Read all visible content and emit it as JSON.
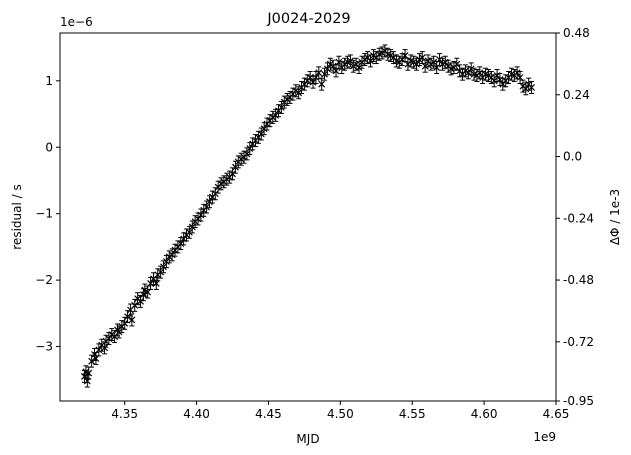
{
  "chart_data": {
    "type": "scatter",
    "title": "J0024-2029",
    "xlabel": "MJD",
    "ylabel": "residual / s",
    "y2label": "ΔΦ / 1e-3",
    "x_offset_label": "1e9",
    "y_offset_label": "1e−6",
    "xlim": [
      4.305,
      4.65
    ],
    "ylim": [
      -3.82,
      1.72
    ],
    "x_ticks": [
      4.35,
      4.4,
      4.45,
      4.5,
      4.55,
      4.6,
      4.65
    ],
    "x_tick_labels": [
      "4.35",
      "4.40",
      "4.45",
      "4.50",
      "4.55",
      "4.60",
      "4.65"
    ],
    "y_ticks": [
      -3,
      -2,
      -1,
      0,
      1
    ],
    "y_tick_labels": [
      "−3",
      "−2",
      "−1",
      "0",
      "1"
    ],
    "y2_ticks": [
      -0.95,
      -0.72,
      -0.48,
      -0.24,
      0.0,
      0.24,
      0.48
    ],
    "y2_tick_labels": [
      "-0.95",
      "-0.72",
      "-0.48",
      "-0.24",
      "0.0",
      "0.24",
      "0.48"
    ],
    "y2lim": [
      -0.95,
      0.48
    ],
    "grid": false,
    "legend": "none",
    "marker": "x",
    "color": "#000000",
    "error_bar": 0.09,
    "series": [
      {
        "x": [
          4.322,
          4.323,
          4.324,
          4.325,
          4.327,
          4.329,
          4.33,
          4.332,
          4.334,
          4.336,
          4.337,
          4.339,
          4.341,
          4.343,
          4.345,
          4.346,
          4.348,
          4.35,
          4.352,
          4.354,
          4.355,
          4.357,
          4.359,
          4.361,
          4.363,
          4.364,
          4.366,
          4.368,
          4.37,
          4.372,
          4.373,
          4.375,
          4.377,
          4.379,
          4.381,
          4.383,
          4.385,
          4.387,
          4.389,
          4.391,
          4.393,
          4.395,
          4.397,
          4.399,
          4.401,
          4.403,
          4.405,
          4.407,
          4.409,
          4.411,
          4.413,
          4.415,
          4.417,
          4.419,
          4.421,
          4.423,
          4.425,
          4.427,
          4.429,
          4.431,
          4.433,
          4.435,
          4.437,
          4.439,
          4.441,
          4.443,
          4.445,
          4.447,
          4.449,
          4.451,
          4.453,
          4.455,
          4.457,
          4.459,
          4.461,
          4.463,
          4.465,
          4.467,
          4.469,
          4.471,
          4.473,
          4.475,
          4.477,
          4.479,
          4.481,
          4.483,
          4.485,
          4.487,
          4.489,
          4.491,
          4.493,
          4.495,
          4.497,
          4.499,
          4.501,
          4.503,
          4.505,
          4.507,
          4.509,
          4.511,
          4.513,
          4.515,
          4.517,
          4.519,
          4.521,
          4.523,
          4.525,
          4.527,
          4.529,
          4.531,
          4.533,
          4.535,
          4.537,
          4.539,
          4.541,
          4.543,
          4.545,
          4.547,
          4.549,
          4.551,
          4.553,
          4.555,
          4.557,
          4.559,
          4.561,
          4.563,
          4.565,
          4.567,
          4.569,
          4.571,
          4.573,
          4.575,
          4.577,
          4.579,
          4.581,
          4.583,
          4.585,
          4.587,
          4.589,
          4.591,
          4.593,
          4.595,
          4.597,
          4.599,
          4.601,
          4.603,
          4.605,
          4.607,
          4.609,
          4.611,
          4.613,
          4.615,
          4.617,
          4.619,
          4.621,
          4.623,
          4.625,
          4.627,
          4.629,
          4.631,
          4.633
        ],
        "y": [
          -3.45,
          -3.38,
          -3.52,
          -3.4,
          -3.22,
          -3.12,
          -3.18,
          -3.05,
          -2.98,
          -3.02,
          -2.92,
          -2.88,
          -2.82,
          -2.85,
          -2.75,
          -2.78,
          -2.7,
          -2.65,
          -2.55,
          -2.45,
          -2.6,
          -2.38,
          -2.28,
          -2.32,
          -2.22,
          -2.15,
          -2.18,
          -2.05,
          -1.98,
          -2.05,
          -1.92,
          -1.88,
          -1.8,
          -1.72,
          -1.65,
          -1.62,
          -1.55,
          -1.5,
          -1.45,
          -1.38,
          -1.32,
          -1.28,
          -1.2,
          -1.12,
          -1.08,
          -1.02,
          -0.95,
          -0.9,
          -0.82,
          -0.75,
          -0.7,
          -0.6,
          -0.55,
          -0.52,
          -0.48,
          -0.45,
          -0.4,
          -0.3,
          -0.22,
          -0.18,
          -0.15,
          -0.1,
          -0.02,
          0.05,
          0.1,
          0.15,
          0.2,
          0.28,
          0.35,
          0.4,
          0.45,
          0.48,
          0.55,
          0.6,
          0.68,
          0.72,
          0.75,
          0.8,
          0.85,
          0.82,
          0.9,
          0.95,
          1.0,
          1.05,
          0.98,
          1.05,
          1.12,
          0.95,
          1.1,
          1.18,
          1.25,
          1.22,
          1.15,
          1.28,
          1.2,
          1.25,
          1.28,
          1.3,
          1.22,
          1.25,
          1.2,
          1.28,
          1.32,
          1.35,
          1.3,
          1.38,
          1.35,
          1.4,
          1.42,
          1.45,
          1.4,
          1.38,
          1.35,
          1.3,
          1.28,
          1.32,
          1.38,
          1.25,
          1.3,
          1.28,
          1.25,
          1.32,
          1.35,
          1.22,
          1.3,
          1.25,
          1.28,
          1.2,
          1.32,
          1.25,
          1.28,
          1.22,
          1.18,
          1.2,
          1.25,
          1.15,
          1.1,
          1.15,
          1.12,
          1.18,
          1.1,
          1.08,
          1.12,
          1.05,
          1.1,
          1.08,
          1.05,
          1.0,
          1.08,
          1.02,
          0.95,
          1.0,
          1.05,
          1.1,
          1.08,
          1.12,
          1.05,
          0.92,
          0.88,
          0.95,
          0.9
        ]
      }
    ]
  }
}
